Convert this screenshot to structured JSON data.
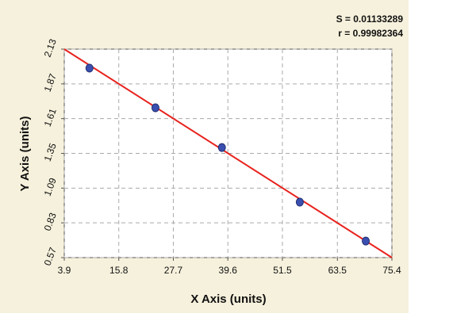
{
  "chart_data": {
    "type": "scatter",
    "annotations": [
      "S = 0.01133289",
      "r = 0.99982364"
    ],
    "x_label": "X Axis (units)",
    "y_label": "Y Axis (units)",
    "x": [
      9.4,
      23.8,
      38.3,
      55.3,
      69.7
    ],
    "values": [
      1.988,
      1.691,
      1.394,
      0.985,
      0.694
    ],
    "color": "#3a4fb0",
    "fit": {
      "x": [
        3.9,
        75.4
      ],
      "values": [
        2.13,
        0.57
      ],
      "color": "#e8231e"
    },
    "xlim": [
      3.9,
      75.4
    ],
    "xticks": [
      3.9,
      15.8,
      27.7,
      39.6,
      51.5,
      63.5,
      75.4
    ],
    "ylim": [
      0.57,
      2.13
    ],
    "yticks": [
      0.57,
      0.83,
      1.09,
      1.35,
      1.61,
      1.87,
      2.13
    ],
    "grid": true
  }
}
